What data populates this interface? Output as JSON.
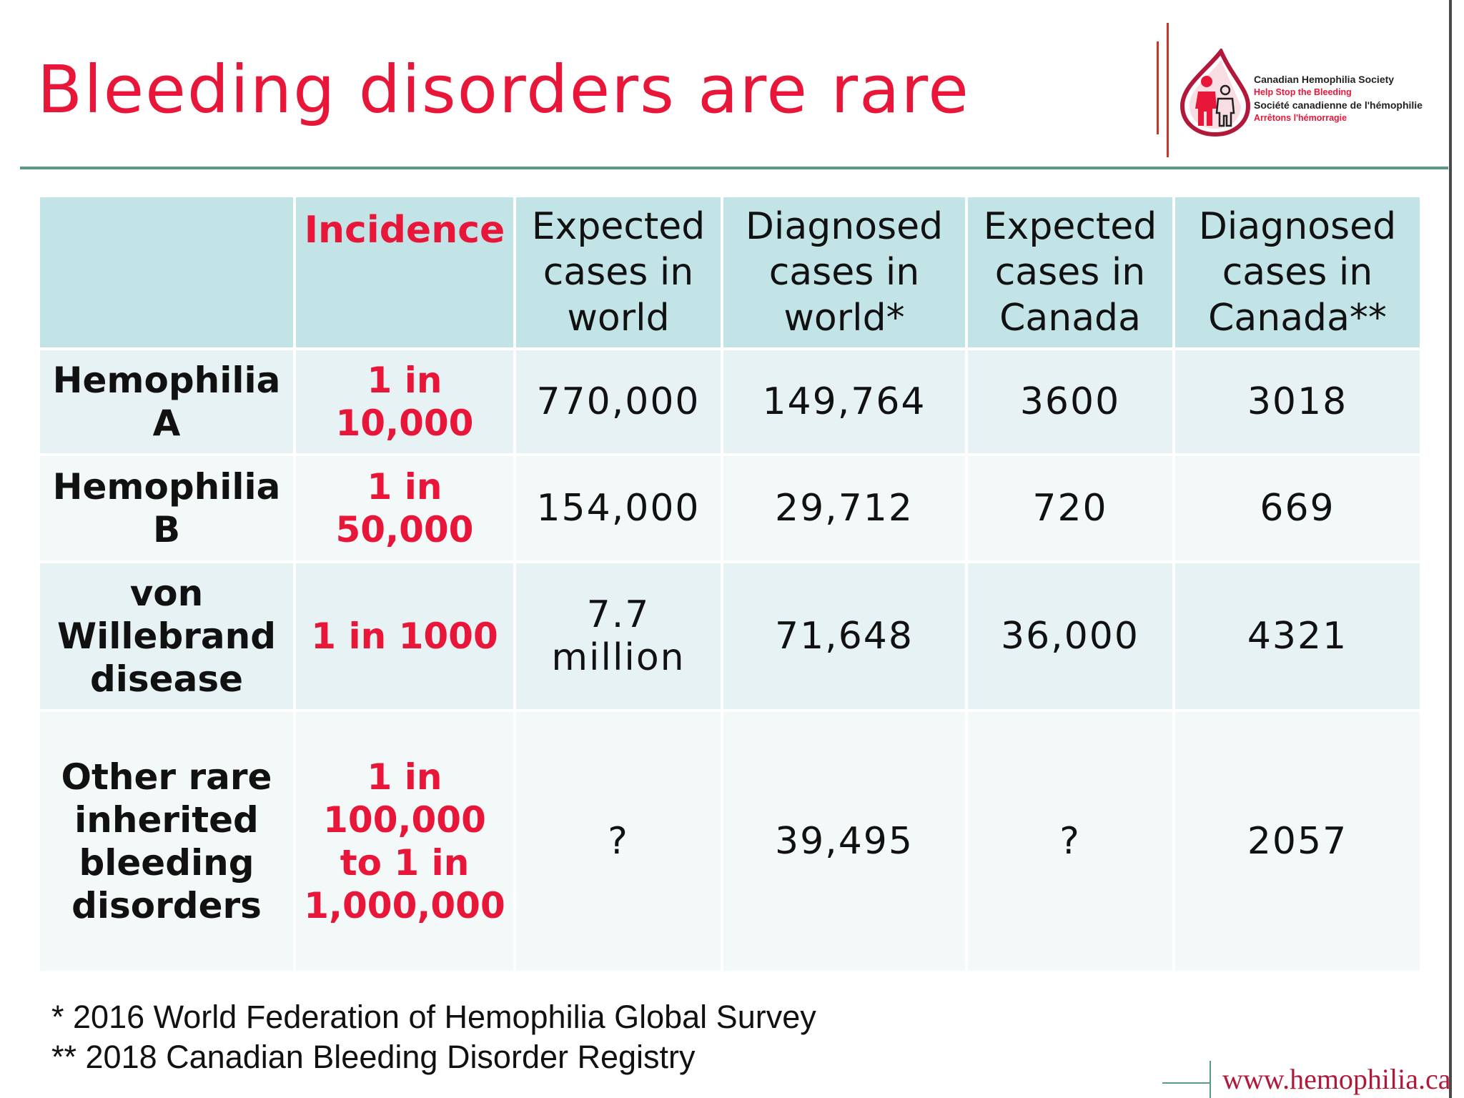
{
  "title": "Bleeding disorders are rare",
  "logo": {
    "name_en": "Canadian Hemophilia Society",
    "tagline_en": "Help Stop the Bleeding",
    "name_fr": "Société canadienne de l'hémophilie",
    "tagline_fr": "Arrêtons l'hémorragie",
    "brand_color": "#e8173a"
  },
  "table": {
    "headers": [
      "",
      "Incidence",
      [
        "Expected",
        "cases in",
        "world"
      ],
      [
        "Diagnosed",
        "cases in",
        "world*"
      ],
      [
        "Expected",
        "cases in",
        "Canada"
      ],
      [
        "Diagnosed",
        "cases in",
        "Canada**"
      ]
    ],
    "rows": [
      {
        "name": [
          "Hemophilia",
          "A"
        ],
        "incidence": [
          "1 in",
          "10,000"
        ],
        "expected_world": "770,000",
        "diagnosed_world": "149,764",
        "expected_canada": "3600",
        "diagnosed_canada": "3018"
      },
      {
        "name": [
          "Hemophilia",
          "B"
        ],
        "incidence": [
          "1 in",
          "50,000"
        ],
        "expected_world": "154,000",
        "diagnosed_world": "29,712",
        "expected_canada": "720",
        "diagnosed_canada": "669"
      },
      {
        "name": [
          "von",
          "Willebrand",
          "disease"
        ],
        "incidence": [
          "1 in 1000"
        ],
        "expected_world": [
          "7.7",
          "million"
        ],
        "diagnosed_world": "71,648",
        "expected_canada": "36,000",
        "diagnosed_canada": "4321"
      },
      {
        "name": [
          "Other rare",
          "inherited",
          "bleeding",
          "disorders"
        ],
        "incidence": [
          "1 in",
          "100,000",
          "to 1 in",
          "1,000,000"
        ],
        "expected_world": "?",
        "diagnosed_world": "39,495",
        "expected_canada": "?",
        "diagnosed_canada": "2057"
      }
    ]
  },
  "footnotes": [
    "* 2016 World Federation of Hemophilia Global Survey",
    "** 2018 Canadian Bleeding Disorder Registry"
  ],
  "website": "www.hemophilia.ca",
  "colors": {
    "accent": "#e8173a",
    "header_bg": "#c3e4e6",
    "row_bg_a": "#e6f2f3",
    "row_bg_b": "#f3f8f9",
    "rule": "#5b9a82"
  }
}
